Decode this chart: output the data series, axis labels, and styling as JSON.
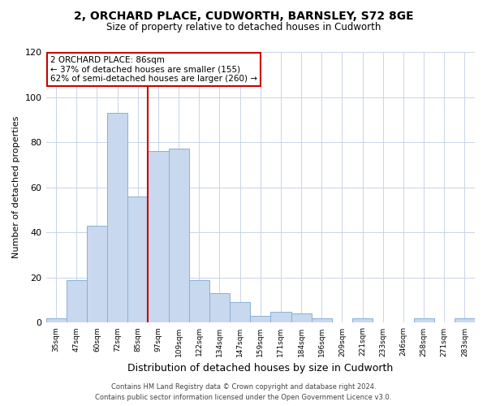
{
  "title": "2, ORCHARD PLACE, CUDWORTH, BARNSLEY, S72 8GE",
  "subtitle": "Size of property relative to detached houses in Cudworth",
  "xlabel": "Distribution of detached houses by size in Cudworth",
  "ylabel": "Number of detached properties",
  "categories": [
    "35sqm",
    "47sqm",
    "60sqm",
    "72sqm",
    "85sqm",
    "97sqm",
    "109sqm",
    "122sqm",
    "134sqm",
    "147sqm",
    "159sqm",
    "171sqm",
    "184sqm",
    "196sqm",
    "209sqm",
    "221sqm",
    "233sqm",
    "246sqm",
    "258sqm",
    "271sqm",
    "283sqm"
  ],
  "values": [
    2,
    19,
    43,
    93,
    56,
    76,
    77,
    19,
    13,
    9,
    3,
    5,
    4,
    2,
    0,
    2,
    0,
    0,
    2,
    0,
    2
  ],
  "bar_color": "#c8d8ee",
  "bar_edge_color": "#8ab0d8",
  "highlight_index": 4,
  "highlight_color": "#cc0000",
  "annotation_title": "2 ORCHARD PLACE: 86sqm",
  "annotation_line1": "← 37% of detached houses are smaller (155)",
  "annotation_line2": "62% of semi-detached houses are larger (260) →",
  "annotation_box_color": "#cc0000",
  "ylim": [
    0,
    120
  ],
  "yticks": [
    0,
    20,
    40,
    60,
    80,
    100,
    120
  ],
  "footer1": "Contains HM Land Registry data © Crown copyright and database right 2024.",
  "footer2": "Contains public sector information licensed under the Open Government Licence v3.0.",
  "bg_color": "#ffffff",
  "grid_color": "#c8d4e8"
}
